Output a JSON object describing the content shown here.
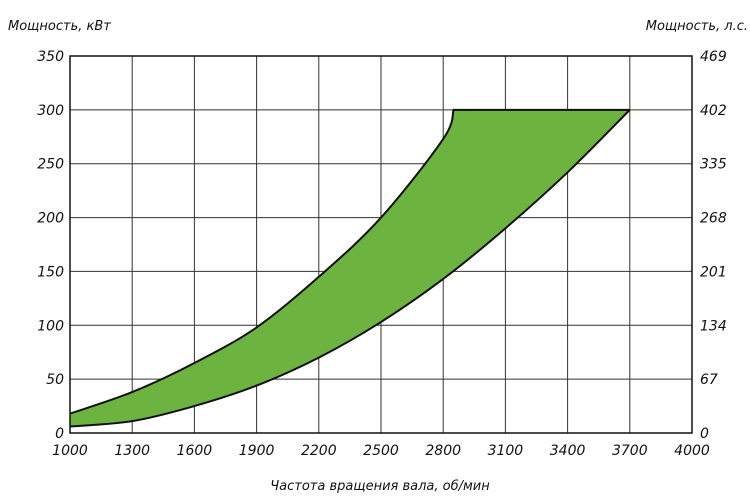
{
  "chart_data": {
    "type": "area",
    "title": "",
    "xlabel": "Частота вращения вала, об/мин",
    "ylabel": "Мощность, кВт",
    "y2label": "Мощность, л.с.",
    "x_ticks": [
      "1000",
      "1300",
      "1600",
      "1900",
      "2200",
      "2500",
      "2800",
      "3100",
      "3400",
      "3700",
      "4000"
    ],
    "y_ticks": [
      "0",
      "50",
      "100",
      "150",
      "200",
      "250",
      "300",
      "350"
    ],
    "y2_ticks": [
      "0",
      "67",
      "134",
      "201",
      "268",
      "335",
      "402",
      "469"
    ],
    "xlim": [
      1000,
      4000
    ],
    "ylim": [
      0,
      350
    ],
    "grid": true,
    "fill_color": "#6db33f",
    "upper_bound": {
      "x": [
        1000,
        1300,
        1600,
        1900,
        2200,
        2500,
        2800,
        2850,
        3700
      ],
      "y": [
        18,
        38,
        65,
        98,
        145,
        200,
        273,
        300,
        300
      ]
    },
    "lower_bound": {
      "x": [
        1000,
        1300,
        1600,
        1900,
        2200,
        2500,
        2800,
        3100,
        3400,
        3700
      ],
      "y": [
        6,
        11,
        25,
        44,
        70,
        103,
        143,
        190,
        242,
        300
      ]
    }
  }
}
